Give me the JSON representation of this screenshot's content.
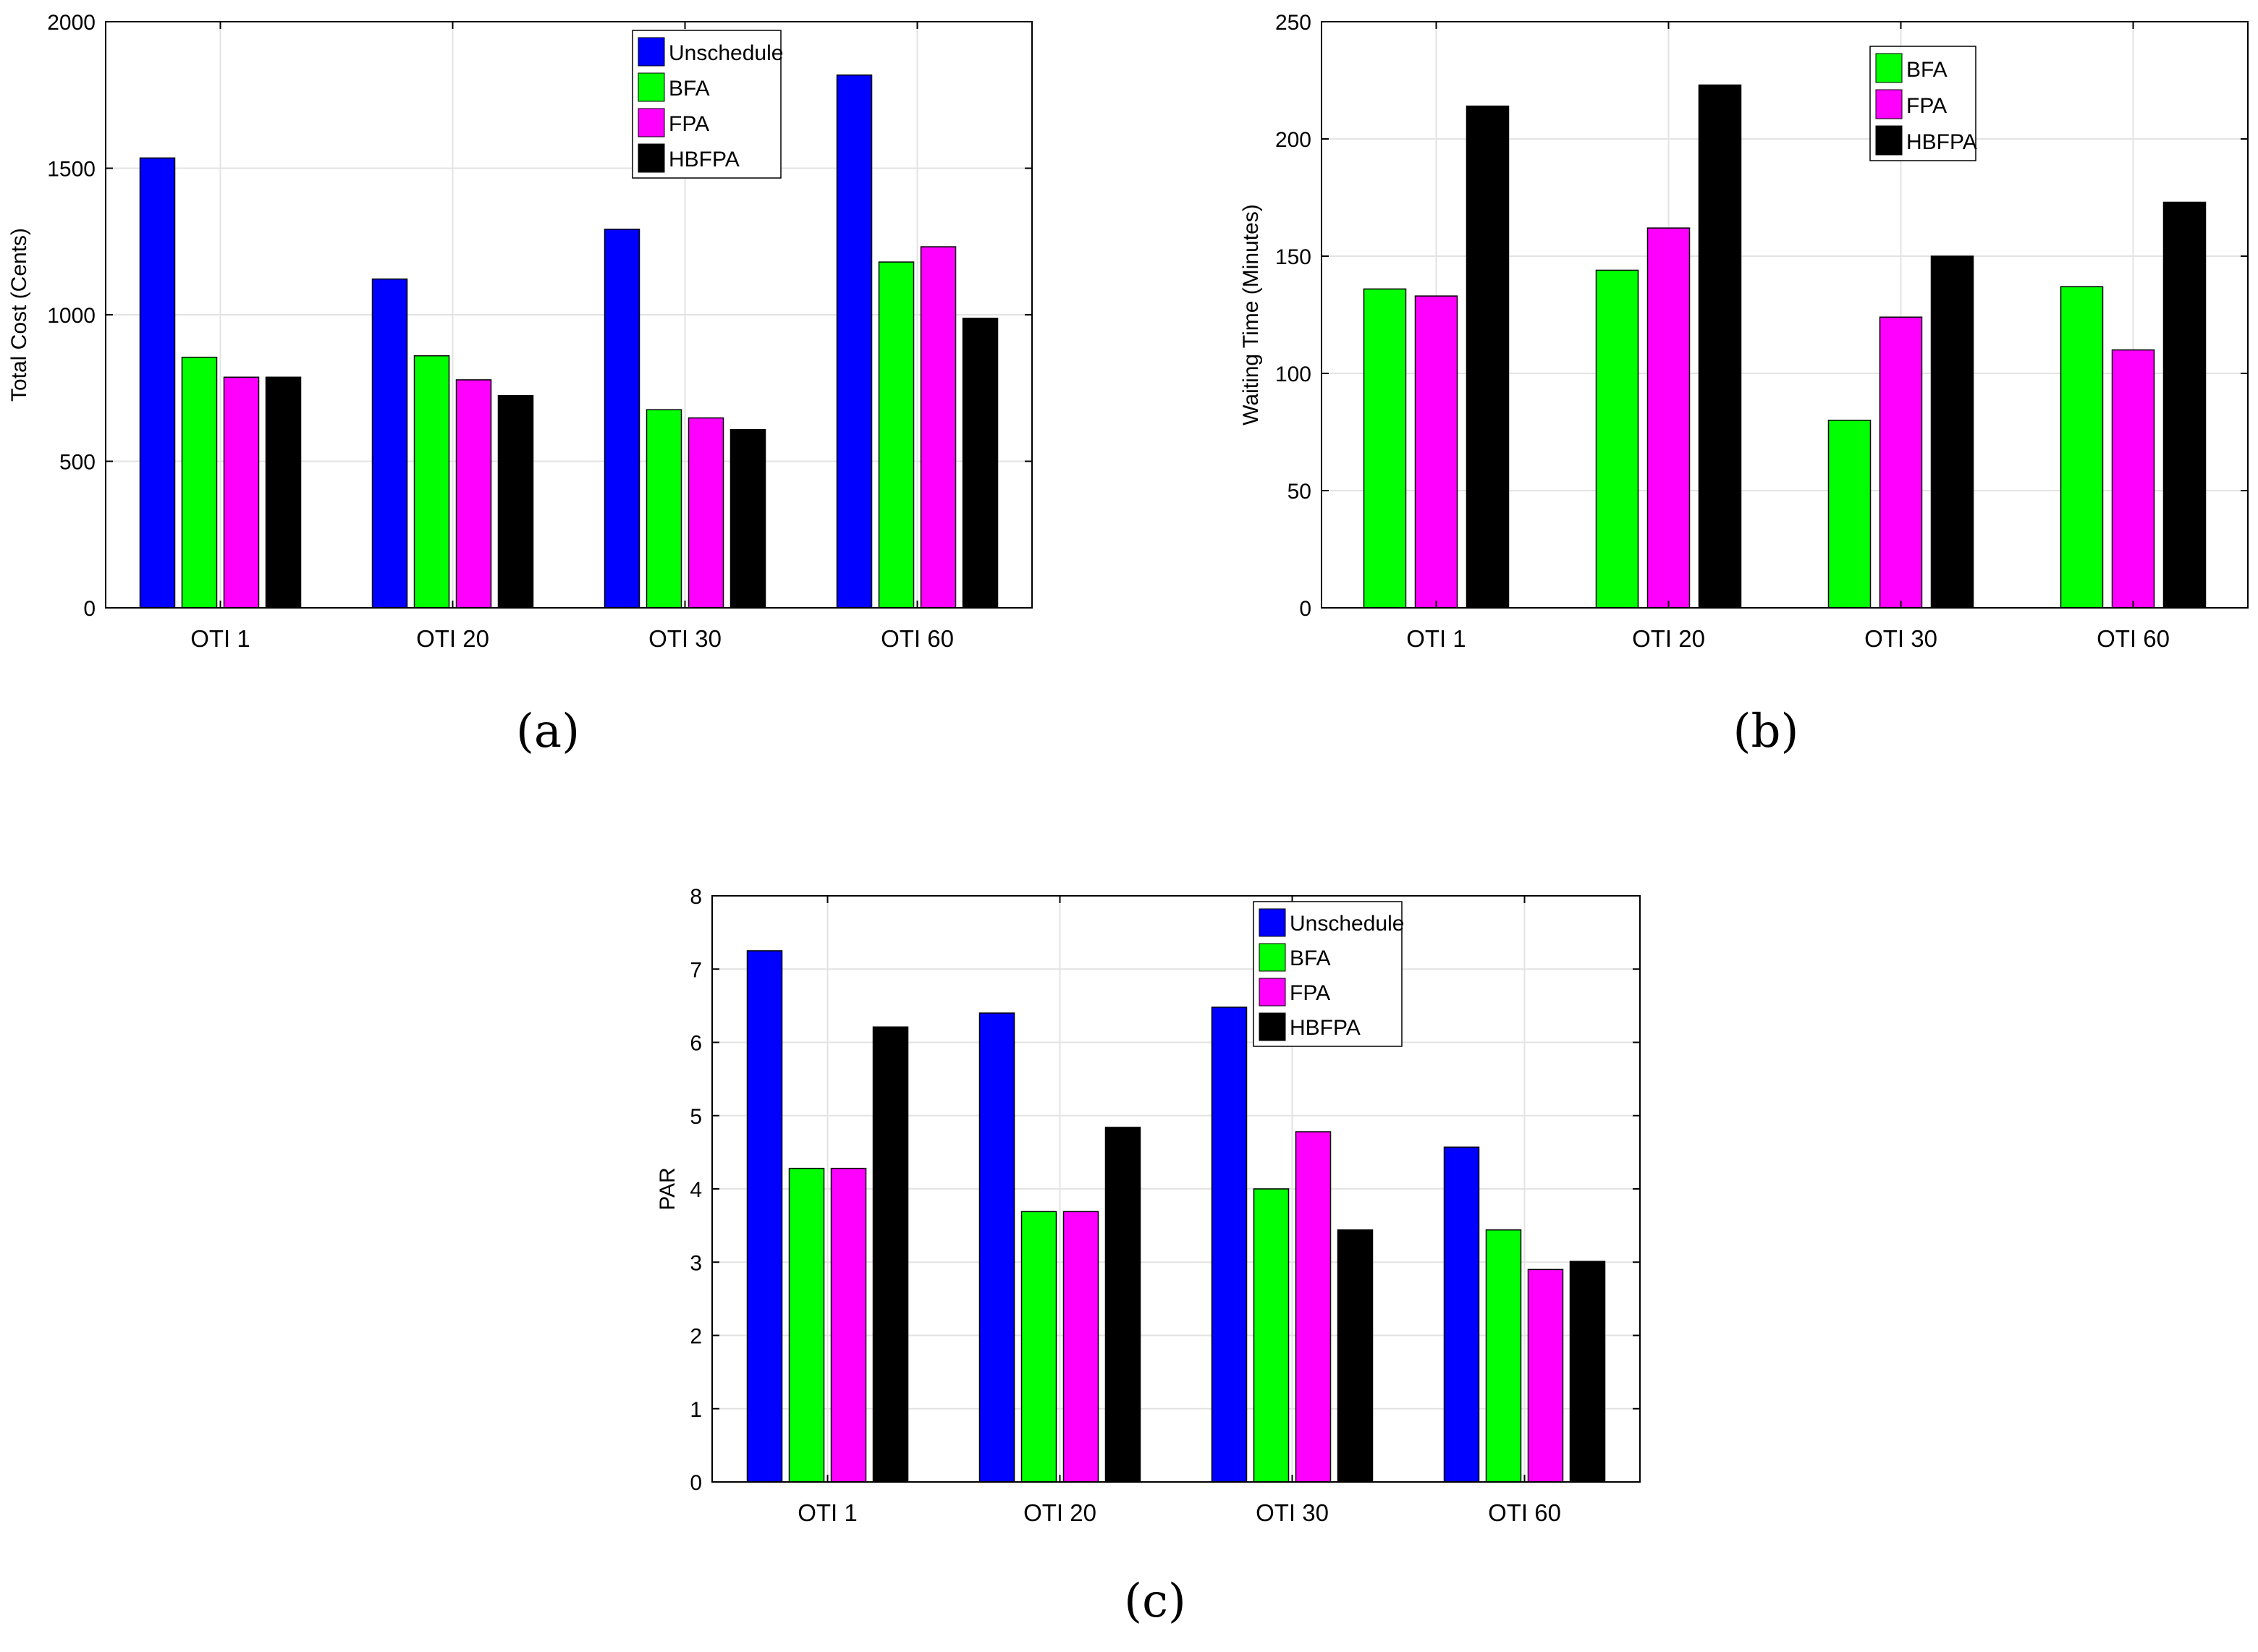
{
  "colors": {
    "Unschedule": "#0000ff",
    "BFA": "#00ff00",
    "FPA": "#ff00ff",
    "HBFPA": "#000000"
  },
  "chart_data": [
    {
      "id": "a",
      "panel_label": "(a)",
      "type": "bar",
      "title": "",
      "xlabel": "",
      "ylabel": "Total Cost (Cents)",
      "ylim": [
        0,
        2000
      ],
      "yticks": [
        0,
        500,
        1000,
        1500,
        2000
      ],
      "grid": true,
      "legend_position": "top-center",
      "categories": [
        "OTI 1",
        "OTI 20",
        "OTI 30",
        "OTI 60"
      ],
      "series": [
        {
          "name": "Unschedule",
          "values": [
            1535,
            1122,
            1292,
            1818
          ]
        },
        {
          "name": "BFA",
          "values": [
            855,
            860,
            676,
            1180
          ]
        },
        {
          "name": "FPA",
          "values": [
            787,
            778,
            648,
            1232
          ]
        },
        {
          "name": "HBFPA",
          "values": [
            787,
            724,
            608,
            988
          ]
        }
      ]
    },
    {
      "id": "b",
      "panel_label": "(b)",
      "type": "bar",
      "title": "",
      "xlabel": "",
      "ylabel": "Waiting Time (Minutes)",
      "ylim": [
        0,
        250
      ],
      "yticks": [
        0,
        50,
        100,
        150,
        200,
        250
      ],
      "grid": true,
      "legend_position": "top-center",
      "categories": [
        "OTI 1",
        "OTI 20",
        "OTI 30",
        "OTI 60"
      ],
      "series": [
        {
          "name": "BFA",
          "values": [
            136,
            144,
            80,
            137
          ]
        },
        {
          "name": "FPA",
          "values": [
            133,
            162,
            124,
            110
          ]
        },
        {
          "name": "HBFPA",
          "values": [
            214,
            223,
            150,
            173
          ]
        }
      ]
    },
    {
      "id": "c",
      "panel_label": "(c)",
      "type": "bar",
      "title": "",
      "xlabel": "",
      "ylabel": "PAR",
      "ylim": [
        0,
        8
      ],
      "yticks": [
        0,
        1,
        2,
        3,
        4,
        5,
        6,
        7,
        8
      ],
      "grid": true,
      "legend_position": "top-right",
      "categories": [
        "OTI 1",
        "OTI 20",
        "OTI 30",
        "OTI 60"
      ],
      "series": [
        {
          "name": "Unschedule",
          "values": [
            7.25,
            6.4,
            6.48,
            4.57
          ]
        },
        {
          "name": "BFA",
          "values": [
            4.28,
            3.69,
            4.0,
            3.44
          ]
        },
        {
          "name": "FPA",
          "values": [
            4.28,
            3.69,
            4.78,
            2.9
          ]
        },
        {
          "name": "HBFPA",
          "values": [
            6.21,
            4.84,
            3.44,
            3.01
          ]
        }
      ]
    }
  ]
}
